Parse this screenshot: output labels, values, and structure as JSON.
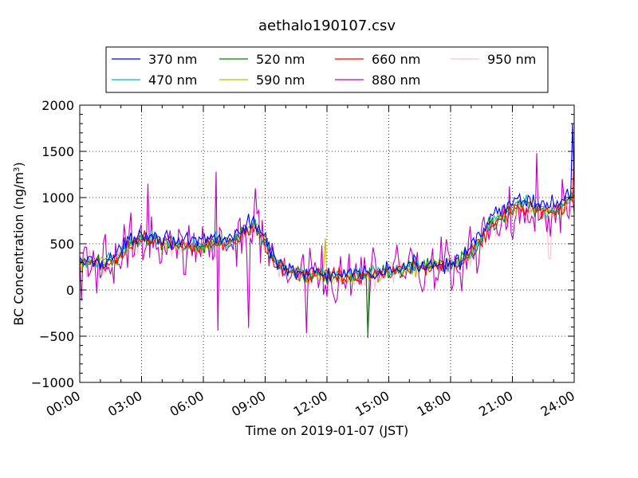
{
  "chart_data": {
    "type": "line",
    "title": "aethalo190107.csv",
    "xlabel": "Time on 2019-01-07 (JST)",
    "ylabel": "BC Concentration (ng/m³)",
    "ylabel_base": "BC Concentration (ng/m",
    "ylabel_sup": "3",
    "ylabel_tail": ")",
    "xlim": [
      0,
      24
    ],
    "ylim": [
      -1000,
      2000
    ],
    "xticks": [
      0,
      3,
      6,
      9,
      12,
      15,
      18,
      21,
      24
    ],
    "xtick_labels": [
      "00:00",
      "03:00",
      "06:00",
      "09:00",
      "12:00",
      "15:00",
      "18:00",
      "21:00",
      "24:00"
    ],
    "yticks": [
      -1000,
      -500,
      0,
      500,
      1000,
      1500,
      2000
    ],
    "ytick_labels": [
      "−1000",
      "−500",
      "0",
      "500",
      "1000",
      "1500",
      "2000"
    ],
    "grid": true,
    "legend_position": "top-center",
    "legend_columns": 4,
    "series": [
      {
        "name": "370 nm",
        "color": "#0000ff",
        "noise": 65,
        "amp": 1.06,
        "spikes": [
          [
            23.9,
            1800
          ]
        ]
      },
      {
        "name": "470 nm",
        "color": "#00bfbf",
        "noise": 55,
        "amp": 1.0,
        "spikes": []
      },
      {
        "name": "520 nm",
        "color": "#008000",
        "noise": 60,
        "amp": 0.98,
        "spikes": [
          [
            14.0,
            -520
          ]
        ]
      },
      {
        "name": "590 nm",
        "color": "#bfbf00",
        "noise": 65,
        "amp": 0.97,
        "spikes": [
          [
            11.9,
            560
          ]
        ]
      },
      {
        "name": "660 nm",
        "color": "#ff0000",
        "noise": 60,
        "amp": 0.96,
        "spikes": [
          [
            24.0,
            1500
          ]
        ]
      },
      {
        "name": "880 nm",
        "color": "#bf00bf",
        "noise": 200,
        "amp": 0.95,
        "spikes": [
          [
            0.1,
            -120
          ],
          [
            3.3,
            1150
          ],
          [
            6.6,
            1280
          ],
          [
            6.7,
            -440
          ],
          [
            8.2,
            -410
          ],
          [
            8.5,
            1100
          ],
          [
            11.0,
            -470
          ],
          [
            14.0,
            -460
          ],
          [
            22.2,
            1480
          ]
        ]
      },
      {
        "name": "950 nm",
        "color": "#ffc0cb",
        "noise": 90,
        "amp": 0.92,
        "spikes": [
          [
            22.8,
            340
          ]
        ]
      }
    ],
    "baseline": {
      "x": [
        0,
        0.5,
        1,
        1.5,
        2,
        2.5,
        3,
        3.5,
        4,
        4.5,
        5,
        5.5,
        6,
        6.5,
        7,
        7.5,
        8,
        8.5,
        9,
        9.5,
        10,
        10.5,
        11,
        11.5,
        12,
        12.5,
        13,
        13.5,
        14,
        14.5,
        15,
        15.5,
        16,
        16.5,
        17,
        17.5,
        18,
        18.5,
        19,
        19.5,
        20,
        20.5,
        21,
        21.5,
        22,
        22.5,
        23,
        23.5,
        24
      ],
      "y": [
        280,
        300,
        290,
        320,
        400,
        520,
        600,
        560,
        540,
        520,
        470,
        480,
        500,
        540,
        520,
        560,
        620,
        720,
        520,
        300,
        250,
        200,
        170,
        180,
        150,
        160,
        140,
        150,
        180,
        170,
        200,
        220,
        240,
        260,
        270,
        280,
        280,
        320,
        420,
        560,
        740,
        820,
        880,
        950,
        900,
        880,
        870,
        940,
        1050
      ]
    }
  }
}
